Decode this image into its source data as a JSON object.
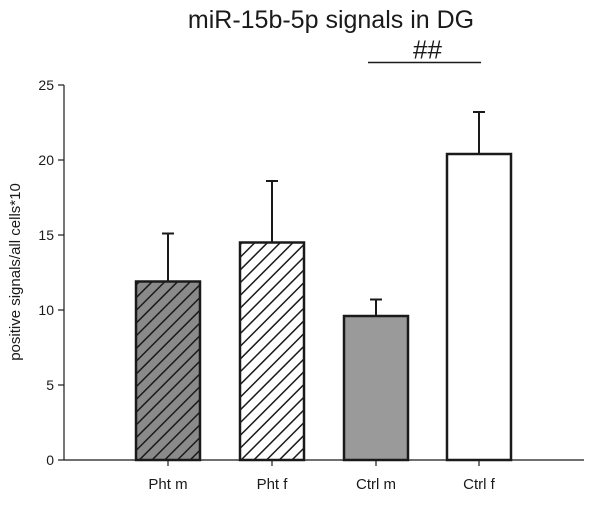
{
  "chart_data": {
    "type": "bar",
    "title": "miR-15b-5p signals in DG",
    "xlabel": "",
    "ylabel": "positive signals/all cells*10",
    "ylim": [
      0,
      25
    ],
    "yticks": [
      0,
      5,
      10,
      15,
      20,
      25
    ],
    "categories": [
      "Pht m",
      "Pht f",
      "Ctrl m",
      "Ctrl f"
    ],
    "values": [
      11.9,
      14.5,
      9.6,
      20.4
    ],
    "error_upper": [
      15.1,
      18.6,
      10.7,
      23.2
    ],
    "bar_fills": [
      {
        "style": "hatch",
        "background": "#8a8a8a",
        "line": "#1a1a1a"
      },
      {
        "style": "hatch",
        "background": "#ffffff",
        "line": "#1a1a1a"
      },
      {
        "style": "solid",
        "background": "#9a9a9a",
        "line": "#1a1a1a"
      },
      {
        "style": "solid",
        "background": "#ffffff",
        "line": "#1a1a1a"
      }
    ],
    "annotation": {
      "text": "##",
      "from_category": "Ctrl m",
      "to_category": "Ctrl f",
      "y": 26.5
    },
    "grid": false,
    "legend": "none"
  }
}
